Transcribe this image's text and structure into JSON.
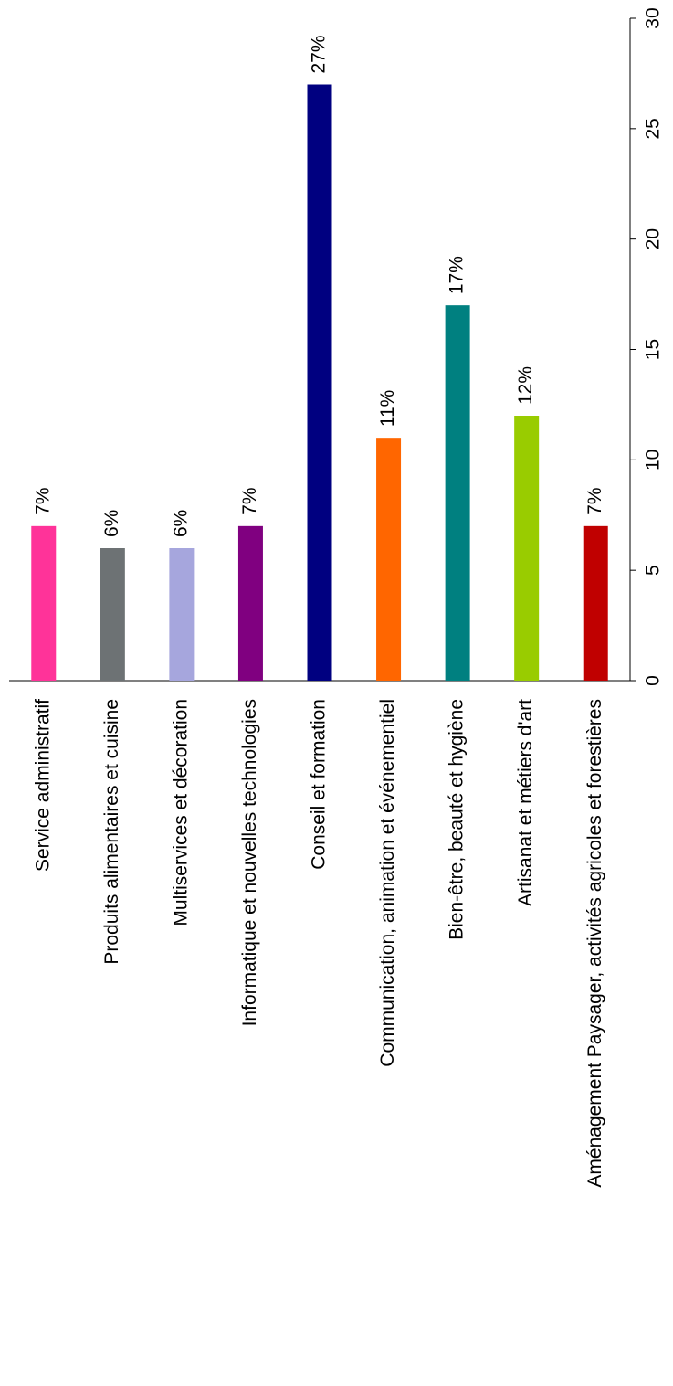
{
  "chart_data": {
    "type": "bar",
    "categories": [
      "Service administratif",
      "Produits alimentaires et cuisine",
      "Multiservices et décoration",
      "Informatique et nouvelles technologies",
      "Conseil et formation",
      "Communication, animation et événementiel",
      "Bien-être, beauté et hygiène",
      "Artisanat et métiers d'art",
      "Aménagement Paysager, activités agricoles et forestières"
    ],
    "values": [
      7,
      6,
      6,
      7,
      27,
      11,
      17,
      12,
      7
    ],
    "value_labels": [
      "7%",
      "6%",
      "6%",
      "7%",
      "27%",
      "11%",
      "17%",
      "12%",
      "7%"
    ],
    "colors": [
      "#ff3399",
      "#6d7274",
      "#a6a6dd",
      "#800080",
      "#000080",
      "#ff6600",
      "#008080",
      "#99cc00",
      "#c00000"
    ],
    "ylim": [
      0,
      30
    ],
    "yticks": [
      0,
      5,
      10,
      15,
      20,
      25,
      30
    ],
    "grid": false
  }
}
